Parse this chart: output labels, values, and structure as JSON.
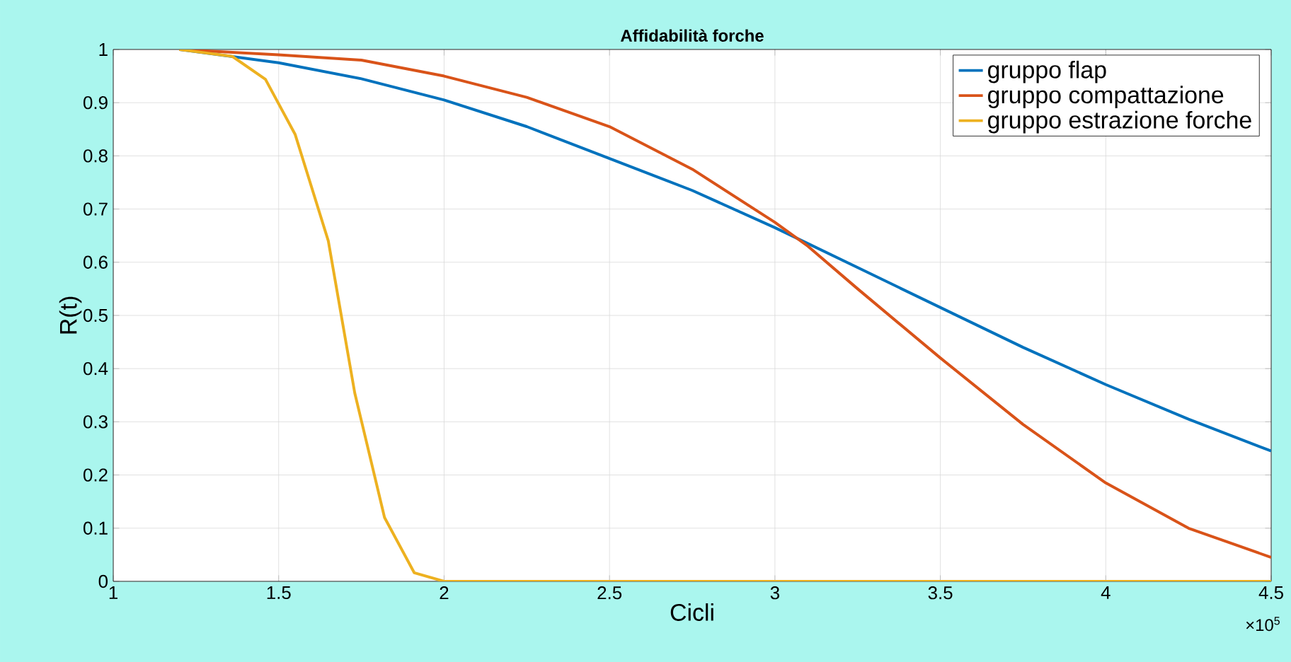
{
  "chart_data": {
    "type": "line",
    "title": "Affidabilità forche",
    "xlabel": "Cicli",
    "ylabel": "R(t)",
    "annotations": [
      "×10$^{5}$"
    ],
    "xlim": [
      1,
      4.5
    ],
    "ylim": [
      0,
      1
    ],
    "xticks": [
      1,
      1.5,
      2,
      2.5,
      3,
      3.5,
      4,
      4.5
    ],
    "yticks": [
      0,
      0.1,
      0.2,
      0.3,
      0.4,
      0.5,
      0.6,
      0.7,
      0.8,
      0.9,
      1
    ],
    "grid": true,
    "legend": "top right",
    "marker": "none",
    "line_style": "solid",
    "series": [
      {
        "name": "gruppo flap",
        "color": "#0072bd",
        "x": [
          1.2,
          1.5,
          1.75,
          2,
          2.25,
          2.5,
          2.75,
          3,
          3.25,
          3.5,
          3.75,
          4,
          4.25,
          4.5
        ],
        "values": [
          1,
          0.975,
          0.945,
          0.905,
          0.855,
          0.795,
          0.735,
          0.665,
          0.59,
          0.515,
          0.44,
          0.37,
          0.305,
          0.245
        ]
      },
      {
        "name": "gruppo compattazione",
        "color": "#d95319",
        "x": [
          1.2,
          1.5,
          1.75,
          2,
          2.25,
          2.5,
          2.75,
          3,
          3.1,
          3.25,
          3.5,
          3.75,
          4,
          4.25,
          4.5
        ],
        "values": [
          1,
          0.99,
          0.98,
          0.95,
          0.91,
          0.855,
          0.775,
          0.675,
          0.63,
          0.55,
          0.42,
          0.295,
          0.185,
          0.1,
          0.045
        ]
      },
      {
        "name": "gruppo estrazione forche",
        "color": "#edb120",
        "x": [
          1.2,
          1.36,
          1.46,
          1.55,
          1.65,
          1.73,
          1.82,
          1.91,
          2,
          2.5,
          3,
          3.5,
          4,
          4.5
        ],
        "values": [
          1,
          0.987,
          0.944,
          0.84,
          0.64,
          0.354,
          0.12,
          0.016,
          0,
          0,
          0,
          0,
          0,
          0
        ]
      }
    ]
  }
}
